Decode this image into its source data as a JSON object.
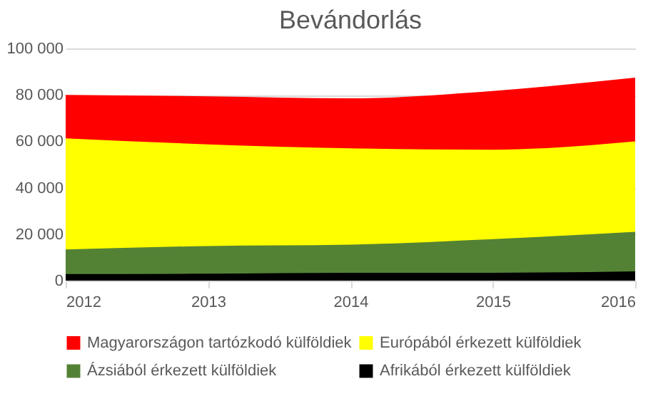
{
  "chart_data": {
    "type": "area",
    "title": "Bevándorlás",
    "categories": [
      "2012",
      "2013",
      "2014",
      "2015",
      "2016"
    ],
    "series": [
      {
        "name": "Magyarországon tartózkodó külföldiek",
        "color": "#ff0000",
        "values": [
          80000,
          79400,
          78500,
          81700,
          87400
        ]
      },
      {
        "name": "Európából érkezett külföldiek",
        "color": "#ffff00",
        "values": [
          61300,
          58700,
          57000,
          56400,
          60000
        ]
      },
      {
        "name": "Ázsiából érkezett külföldiek",
        "color": "#548235",
        "values": [
          13400,
          14900,
          15500,
          17900,
          21000
        ]
      },
      {
        "name": "Afrikából érkezett külföldiek",
        "color": "#000000",
        "values": [
          2800,
          3000,
          3400,
          3400,
          4000
        ]
      }
    ],
    "ylim": [
      0,
      100000
    ],
    "yticks": [
      0,
      20000,
      40000,
      60000,
      80000,
      100000
    ],
    "grid": "y",
    "legend": "bottom"
  }
}
